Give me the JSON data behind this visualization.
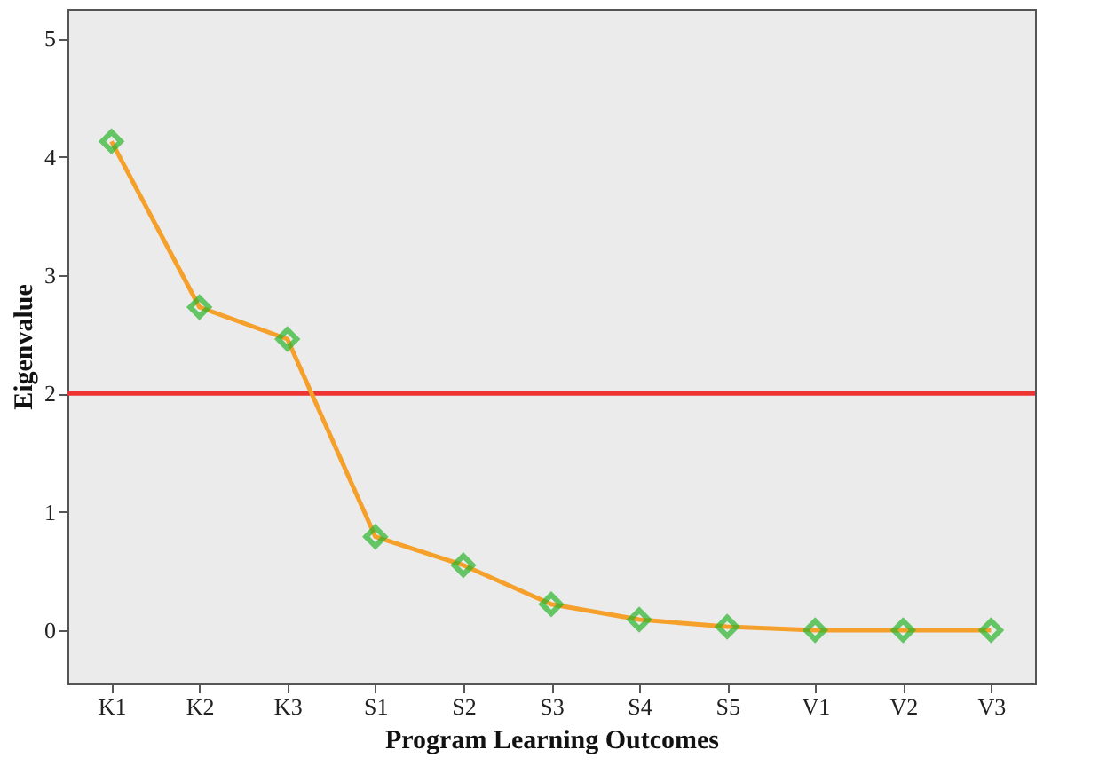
{
  "chart_data": {
    "type": "line",
    "xlabel": "Program Learning Outcomes",
    "ylabel": "Eigenvalue",
    "categories": [
      "K1",
      "K2",
      "K3",
      "S1",
      "S2",
      "S3",
      "S4",
      "S5",
      "V1",
      "V2",
      "V3"
    ],
    "series": [
      {
        "color": "#f5a02a",
        "colors": [
          "#2bb52b",
          "#2bb52b",
          "#2bb52b",
          "#2bb52b",
          "#2bb52b",
          "#2bb52b",
          "#2bb52b",
          "#2bb52b",
          "#2bb52b",
          "#2bb52b",
          "#2bb52b"
        ],
        "values": [
          4.13,
          2.73,
          2.46,
          0.79,
          0.55,
          0.22,
          0.09,
          0.03,
          0.0,
          0.0,
          0.0
        ]
      }
    ],
    "ylim": [
      -0.45,
      5.25
    ],
    "yticks": [
      0,
      1,
      2,
      3,
      4,
      5
    ],
    "ref_lines": [
      {
        "axis": "y",
        "value": 2,
        "color": "#ee3333"
      }
    ],
    "marker": "diamond",
    "line_style": "solid",
    "grid": false
  }
}
